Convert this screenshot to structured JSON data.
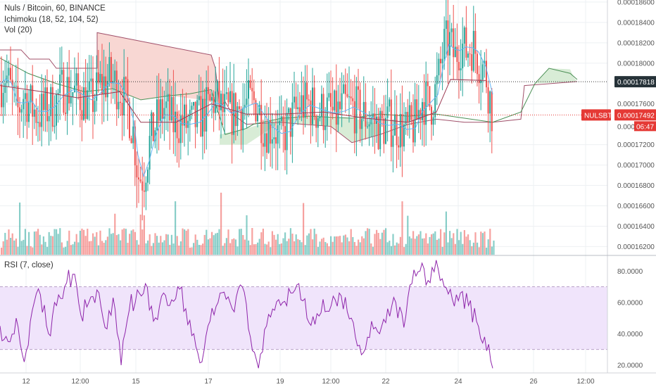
{
  "header": {
    "title": "Nuls / Bitcoin, 60, BINANCE",
    "ichimoku": "Ichimoku (18, 52, 104, 52)",
    "volume": "Vol (20)"
  },
  "rsi_panel": {
    "title": "RSI (7, close)"
  },
  "price_badges": {
    "ref_value": "0.00017818",
    "symbol": "NULSBTC",
    "last_value": "0.00017492",
    "countdown": "06:47",
    "partial_label": "0.000"
  },
  "colors": {
    "up": "#26a69a",
    "down": "#ef5350",
    "cloud_red": "#f8d7d3",
    "cloud_green": "#d8ecd6",
    "rsi_line": "#8e24aa",
    "rsi_band": "#f0e4fb",
    "badge_red": "#e53935",
    "grid": "#eef0f3"
  },
  "chart_data": [
    {
      "type": "candlestick",
      "title": "Nuls / Bitcoin, 60, BINANCE",
      "x_tick_labels": [
        "12",
        "12:00",
        "15",
        "17",
        "19",
        "12:00",
        "22",
        "24",
        "26",
        "12:00"
      ],
      "y_tick_labels": [
        "0.00018600",
        "0.00018400",
        "0.00018200",
        "0.00018000",
        "0.00017600",
        "0.00017200",
        "0.00017000",
        "0.00016800",
        "0.00016600",
        "0.00016400",
        "0.00016200"
      ],
      "ylim": [
        0.0001612,
        0.0001862
      ],
      "last_price": 0.00017492,
      "reference_line": 0.00017818,
      "volume_series": "Vol (20)"
    },
    {
      "type": "line",
      "title": "RSI (7, close)",
      "series": [
        {
          "name": "RSI (7, close)"
        }
      ],
      "y_tick_labels": [
        "80.0000",
        "60.0000",
        "40.0000",
        "20.0000"
      ],
      "ylim": [
        15,
        90
      ],
      "bands": [
        30,
        70
      ],
      "values_sampled": [
        45,
        35,
        50,
        22,
        55,
        65,
        40,
        58,
        70,
        78,
        52,
        60,
        68,
        44,
        63,
        20,
        55,
        68,
        72,
        48,
        64,
        58,
        70,
        56,
        40,
        22,
        48,
        60,
        62,
        54,
        70,
        38,
        18,
        45,
        55,
        60,
        66,
        72,
        50,
        46,
        62,
        58,
        66,
        54,
        38,
        28,
        48,
        40,
        56,
        60,
        44,
        72,
        80,
        74,
        87,
        70,
        62,
        66,
        58,
        48,
        38,
        18
      ]
    }
  ]
}
